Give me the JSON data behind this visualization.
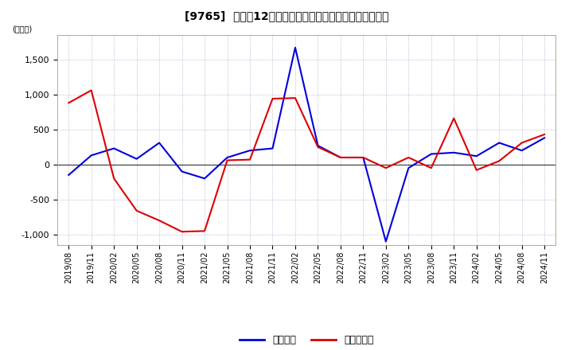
{
  "title": "[9765]  利益の12か月移動合計の対前年同期増減額の推移",
  "ylabel": "(百万円)",
  "legend_labels": [
    "経常利益",
    "当期純利益"
  ],
  "line_colors": [
    "#0000dd",
    "#dd0000"
  ],
  "background_color": "#ffffff",
  "plot_bg_color": "#ffffff",
  "grid_color": "#aaaacc",
  "ylim": [
    -1150,
    1850
  ],
  "yticks": [
    -1000,
    -500,
    0,
    500,
    1000,
    1500
  ],
  "dates": [
    "2019/08",
    "2019/11",
    "2020/02",
    "2020/05",
    "2020/08",
    "2020/11",
    "2021/02",
    "2021/05",
    "2021/08",
    "2021/11",
    "2022/02",
    "2022/05",
    "2022/08",
    "2022/11",
    "2023/02",
    "2023/05",
    "2023/08",
    "2023/11",
    "2024/02",
    "2024/05",
    "2024/08",
    "2024/11"
  ],
  "keijo_rieki": [
    -150,
    130,
    230,
    80,
    310,
    -100,
    -200,
    100,
    200,
    230,
    1670,
    270,
    100,
    100,
    -1100,
    -50,
    150,
    170,
    120,
    310,
    200,
    380
  ],
  "touki_junrieki": [
    880,
    1060,
    -200,
    -660,
    -800,
    -960,
    -950,
    60,
    70,
    940,
    950,
    250,
    100,
    100,
    -50,
    100,
    -50,
    660,
    -80,
    50,
    310,
    430
  ]
}
